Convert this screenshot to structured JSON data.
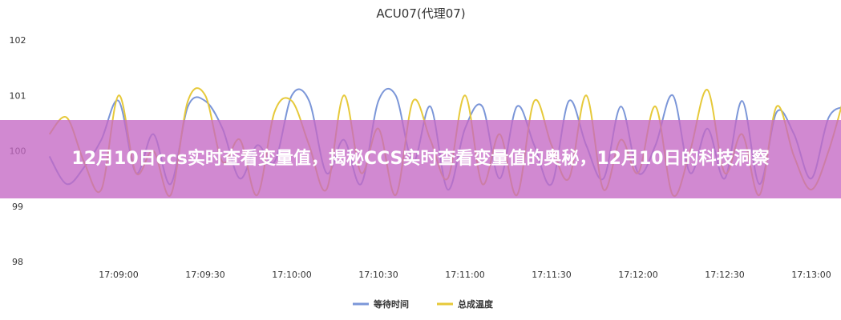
{
  "banner": {
    "text": "12月10日ccs实时查看变量值，揭秘CCS实时查看变量值的奥秘，12月10日的科技洞察"
  },
  "chart_data": {
    "type": "line",
    "title": "ACU07(代理07)",
    "xlabel": "",
    "ylabel": "",
    "ylim": [
      98,
      102
    ],
    "yticks": [
      "98",
      "99",
      "100",
      "101",
      "102"
    ],
    "xticks": [
      "17:09:00",
      "17:09:30",
      "17:10:00",
      "17:10:30",
      "17:11:00",
      "17:11:30",
      "17:12:00",
      "17:12:30",
      "17:13:00"
    ],
    "x_start": "17:08:36",
    "x_step_seconds": 6,
    "grid": false,
    "legend_placement": "bottom",
    "series": [
      {
        "name": "等待时间",
        "color": "#7b96d8",
        "values": [
          99.9,
          99.4,
          99.7,
          100.2,
          100.9,
          99.6,
          100.3,
          99.4,
          100.8,
          100.9,
          100.4,
          99.5,
          100.1,
          99.8,
          101.0,
          100.9,
          99.6,
          100.2,
          99.4,
          100.9,
          101.0,
          99.8,
          100.8,
          99.3,
          100.4,
          100.8,
          99.5,
          100.8,
          100.1,
          99.4,
          100.9,
          100.1,
          99.5,
          100.8,
          99.6,
          100.1,
          101.0,
          99.6,
          100.4,
          99.5,
          100.9,
          99.4,
          100.7,
          100.3,
          99.5,
          100.6,
          100.8
        ]
      },
      {
        "name": "总成温度",
        "color": "#e6c93a",
        "values": [
          100.3,
          100.6,
          99.8,
          99.3,
          101.0,
          99.6,
          100.0,
          99.2,
          100.9,
          101.0,
          99.8,
          100.2,
          99.2,
          100.7,
          100.9,
          100.1,
          99.3,
          101.0,
          99.6,
          100.4,
          99.2,
          100.9,
          100.2,
          99.5,
          101.0,
          99.4,
          100.3,
          99.2,
          100.9,
          100.1,
          99.5,
          101.0,
          99.3,
          100.2,
          99.6,
          100.8,
          99.2,
          100.0,
          101.1,
          99.6,
          100.3,
          99.2,
          100.8,
          99.9,
          99.3,
          100.0,
          101.1
        ]
      }
    ]
  }
}
